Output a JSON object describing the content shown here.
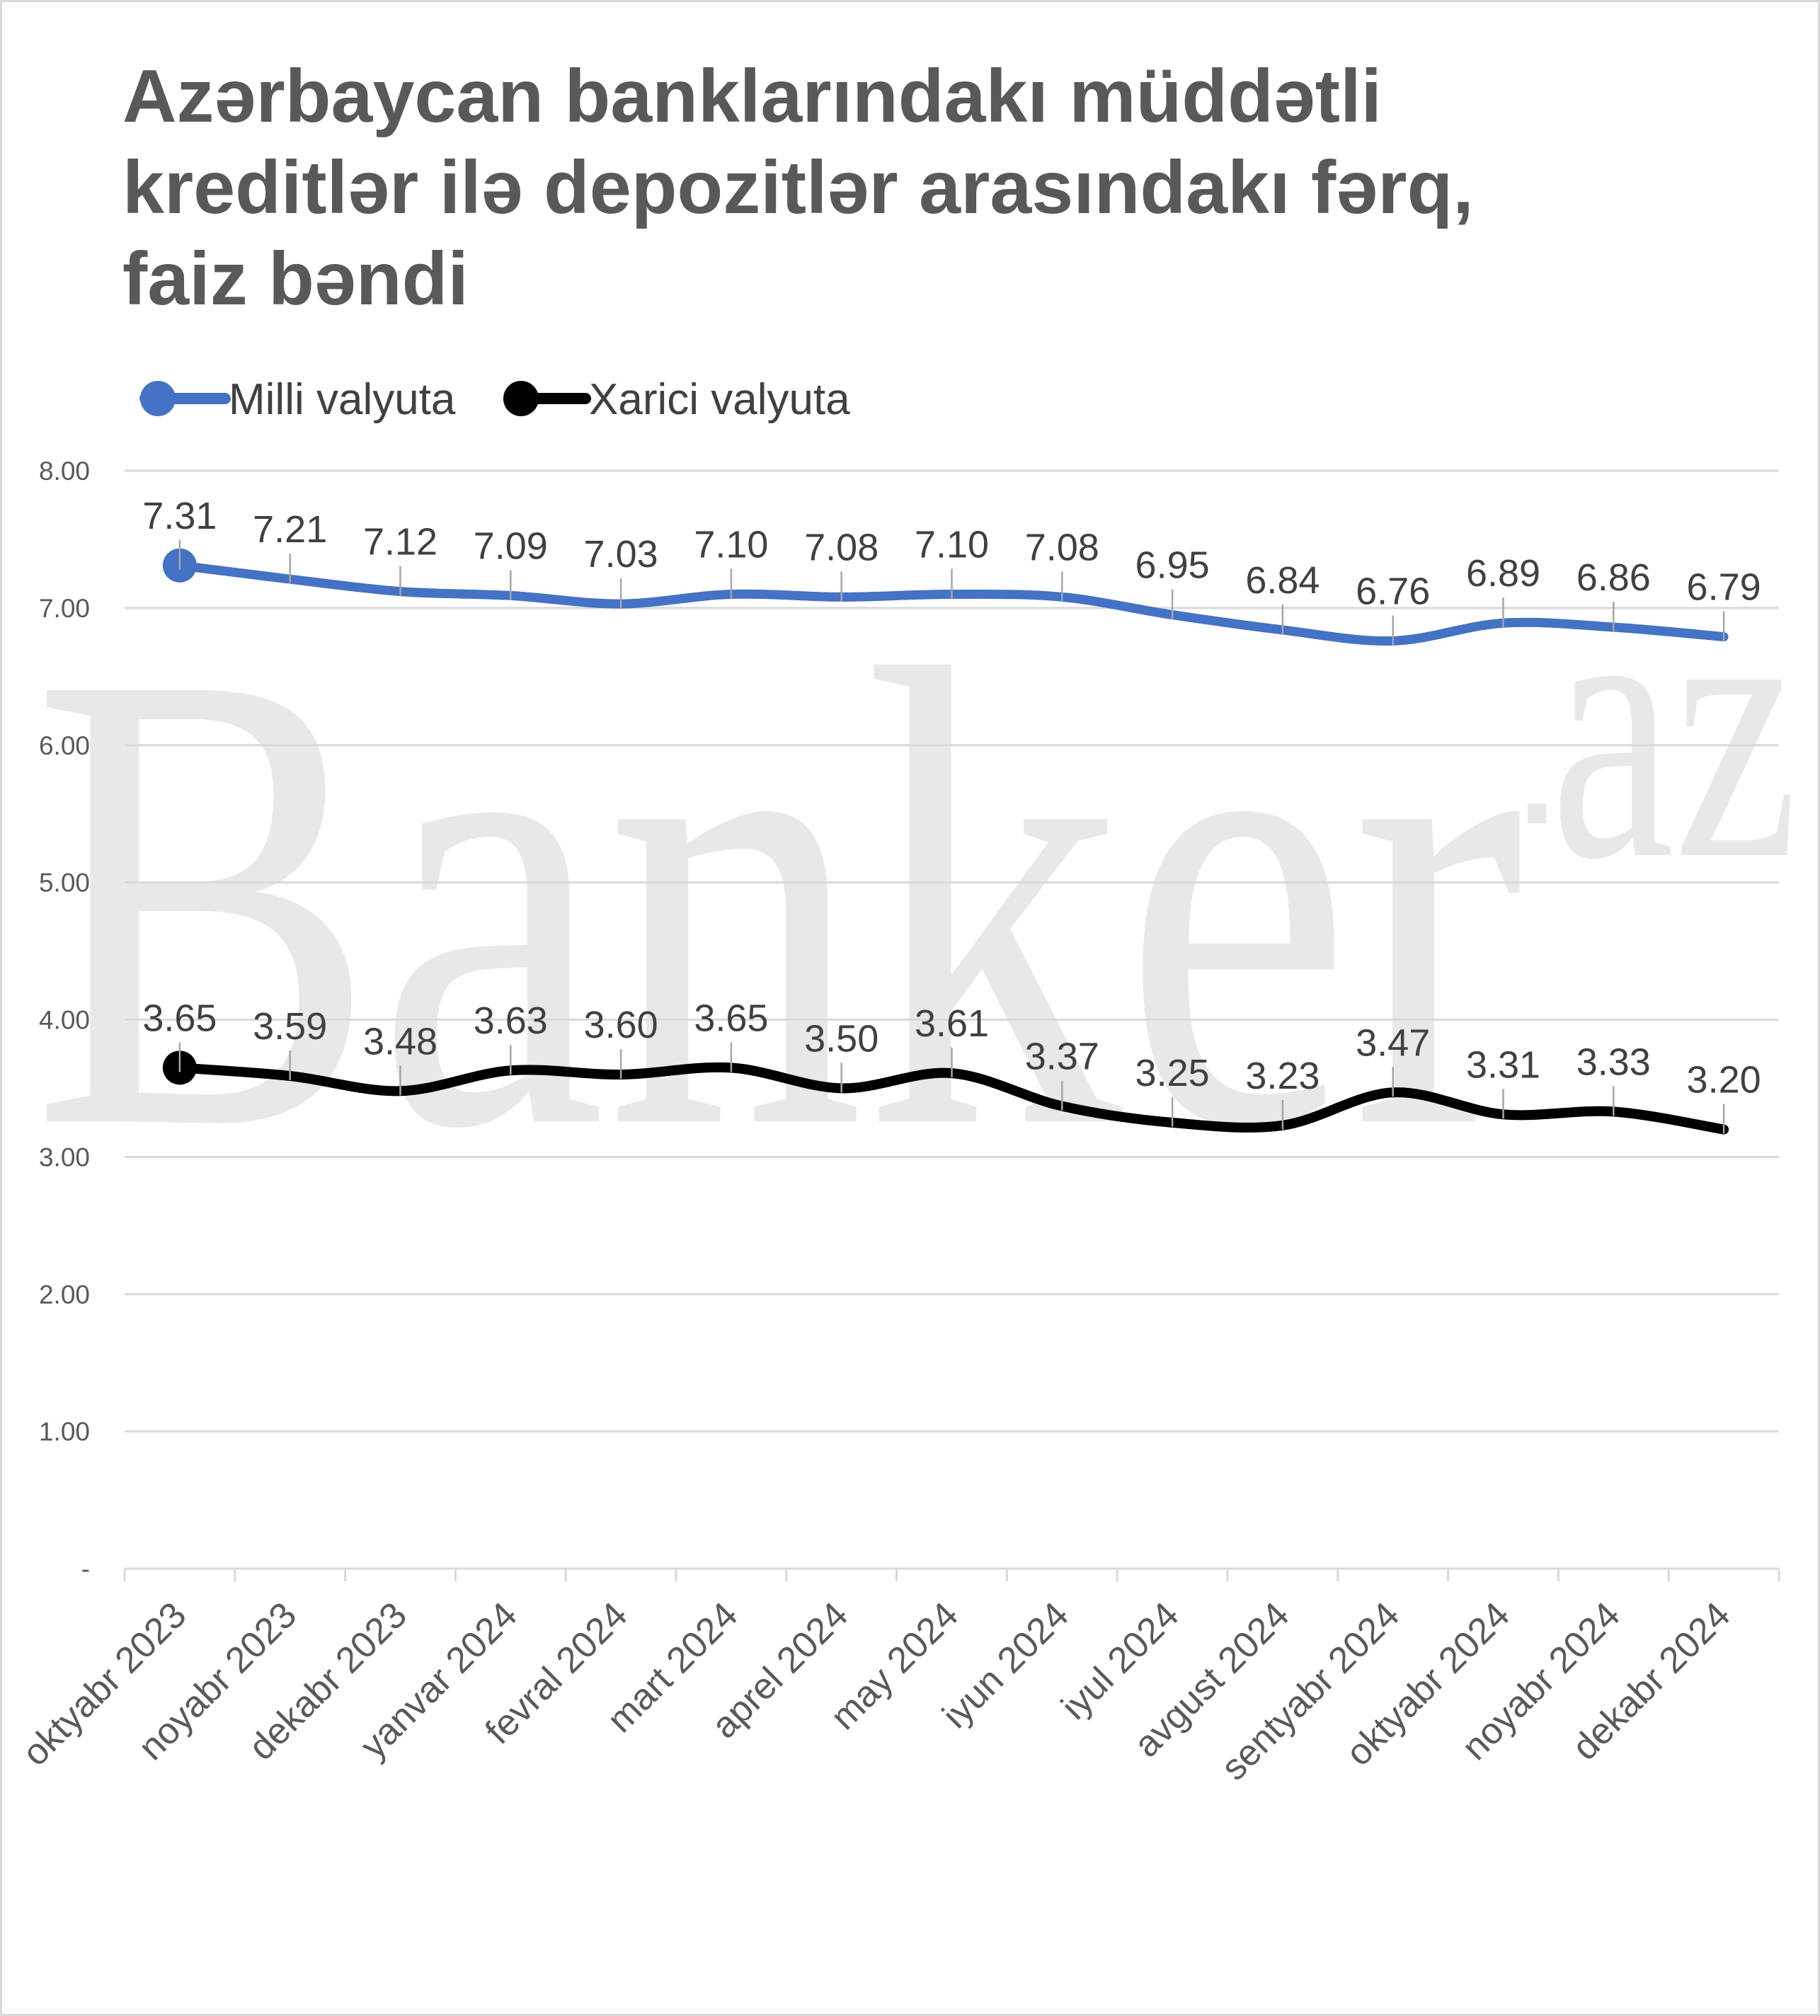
{
  "watermark": {
    "text": "Banker",
    "suffix": "az"
  },
  "chart_data": {
    "type": "line",
    "title": "Azərbaycan banklarındakı müddətli kreditlər ilə depozitlər arasındakı fərq, faiz bəndi",
    "xlabel": "",
    "ylabel": "",
    "ylim": [
      0,
      8
    ],
    "grid": true,
    "legend": "top-left",
    "yticks": [
      0,
      1,
      2,
      3,
      4,
      5,
      6,
      7,
      8
    ],
    "ytick_labels": [
      "-",
      "1.00",
      "2.00",
      "3.00",
      "4.00",
      "5.00",
      "6.00",
      "7.00",
      "8.00"
    ],
    "categories": [
      "oktyabr 2023",
      "noyabr 2023",
      "dekabr 2023",
      "yanvar 2024",
      "fevral 2024",
      "mart 2024",
      "aprel 2024",
      "may 2024",
      "iyun 2024",
      "iyul 2024",
      "avgust 2024",
      "sentyabr 2024",
      "oktyabr 2024",
      "noyabr 2024",
      "dekabr 2024"
    ],
    "series": [
      {
        "name": "Milli valyuta",
        "color": "#4472C4",
        "values": [
          7.31,
          7.21,
          7.12,
          7.09,
          7.03,
          7.1,
          7.08,
          7.1,
          7.08,
          6.95,
          6.84,
          6.76,
          6.89,
          6.86,
          6.79
        ],
        "labels": [
          "7.31",
          "7.21",
          "7.12",
          "7.09",
          "7.03",
          "7.10",
          "7.08",
          "7.10",
          "7.08",
          "6.95",
          "6.84",
          "6.76",
          "6.89",
          "6.86",
          "6.79"
        ]
      },
      {
        "name": "Xarici valyuta",
        "color": "#000000",
        "values": [
          3.65,
          3.59,
          3.48,
          3.63,
          3.6,
          3.65,
          3.5,
          3.61,
          3.37,
          3.25,
          3.23,
          3.47,
          3.31,
          3.33,
          3.2
        ],
        "labels": [
          "3.65",
          "3.59",
          "3.48",
          "3.63",
          "3.60",
          "3.65",
          "3.50",
          "3.61",
          "3.37",
          "3.25",
          "3.23",
          "3.47",
          "3.31",
          "3.33",
          "3.20"
        ]
      }
    ]
  }
}
